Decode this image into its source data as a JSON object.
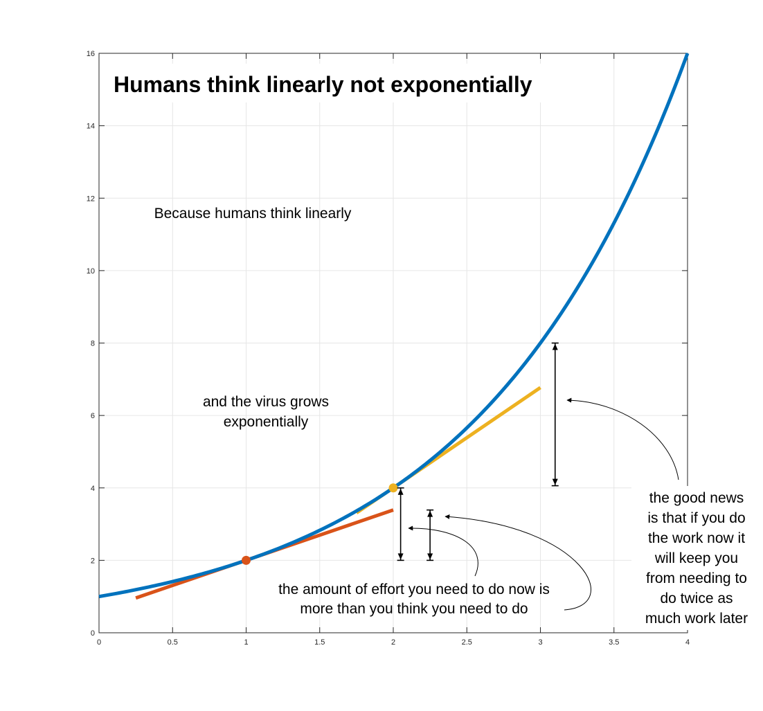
{
  "chart_data": {
    "type": "line",
    "title": "Humans think linearly not exponentially",
    "xlabel": "",
    "ylabel": "",
    "xlim": [
      0,
      4
    ],
    "ylim": [
      0,
      16
    ],
    "grid": true,
    "x_ticks": [
      0,
      0.5,
      1,
      1.5,
      2,
      2.5,
      3,
      3.5,
      4
    ],
    "x_tick_labels": [
      "0",
      "0.5",
      "1",
      "1.5",
      "2",
      "2.5",
      "3",
      "3.5",
      "4"
    ],
    "y_ticks": [
      0,
      2,
      4,
      6,
      8,
      10,
      12,
      14,
      16
    ],
    "y_tick_labels": [
      "0",
      "2",
      "4",
      "6",
      "8",
      "10",
      "12",
      "14",
      "16"
    ],
    "series": [
      {
        "function": "2^x",
        "x_range": [
          0,
          4
        ],
        "color": "#0072BD"
      },
      {
        "x": [
          0.25,
          2
        ],
        "y": [
          0.96,
          3.39
        ],
        "color": "#D95319"
      },
      {
        "x": [
          1.75,
          3
        ],
        "y": [
          3.31,
          6.77
        ],
        "color": "#EDB120"
      }
    ],
    "points": [
      {
        "x": 1,
        "y": 2,
        "color": "#D95319"
      },
      {
        "x": 2,
        "y": 4,
        "color": "#EDB120"
      }
    ],
    "gap_arrows": [
      {
        "x": 2.05,
        "y_from": 2,
        "y_to": 4
      },
      {
        "x": 2.25,
        "y_from": 2,
        "y_to": 3.39
      },
      {
        "x": 3.1,
        "y_from": 4.06,
        "y_to": 8
      }
    ],
    "annotations": {
      "because": "Because humans think linearly",
      "virus_line1": "and the virus grows",
      "virus_line2": "exponentially",
      "effort_line1": "the amount of effort you need to do now is",
      "effort_line2": "more than you think you need to do",
      "good_news_lines": [
        "the good news",
        "is that if you do",
        "the work now it",
        "will keep you",
        "from needing to",
        "do twice as",
        "much work later"
      ]
    }
  }
}
